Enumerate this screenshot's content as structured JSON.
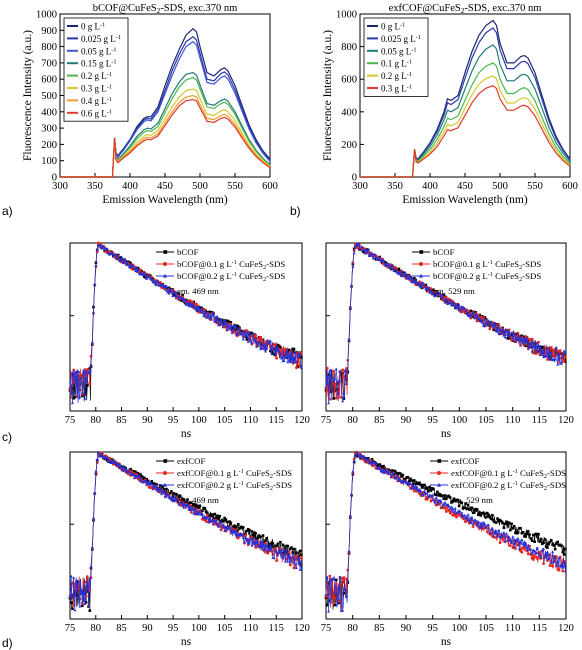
{
  "panel_letters": [
    "a)",
    "b)",
    "c)",
    "d)"
  ],
  "chart_data": [
    {
      "id": "a",
      "type": "line",
      "title": "bCOF@CuFeS₂-SDS, exc.370 nm",
      "xlabel": "Emission Wavelength (nm)",
      "ylabel": "Fluorescence Intensity (a.u.)",
      "xlim": [
        300,
        600
      ],
      "ylim": [
        0,
        1000
      ],
      "xticks": [
        300,
        350,
        400,
        450,
        500,
        550,
        600
      ],
      "yticks": [
        0,
        100,
        200,
        300,
        400,
        500,
        600,
        700,
        800,
        900,
        1000
      ],
      "legend_position": "top-left",
      "x": [
        370,
        375,
        378,
        380,
        383,
        386,
        390,
        400,
        410,
        420,
        425,
        430,
        440,
        450,
        460,
        470,
        480,
        490,
        495,
        500,
        510,
        520,
        530,
        535,
        540,
        550,
        560,
        570,
        580,
        590,
        600
      ],
      "series": [
        {
          "name": "0 g L⁻¹",
          "color": "#1c2673",
          "values": [
            0,
            0,
            240,
            150,
            130,
            150,
            170,
            230,
            310,
            360,
            370,
            370,
            430,
            560,
            680,
            780,
            870,
            910,
            890,
            800,
            640,
            620,
            660,
            670,
            650,
            560,
            440,
            320,
            230,
            160,
            110
          ]
        },
        {
          "name": "0.025 g L⁻¹",
          "color": "#2a39a8",
          "values": [
            0,
            0,
            240,
            145,
            125,
            145,
            165,
            225,
            300,
            350,
            360,
            355,
            415,
            530,
            650,
            750,
            830,
            860,
            840,
            760,
            600,
            590,
            635,
            645,
            625,
            535,
            420,
            305,
            220,
            150,
            100
          ]
        },
        {
          "name": "0.05 g L⁻¹",
          "color": "#3f55d9",
          "values": [
            0,
            0,
            240,
            140,
            120,
            140,
            160,
            220,
            290,
            340,
            350,
            345,
            400,
            510,
            620,
            720,
            800,
            830,
            810,
            730,
            580,
            570,
            610,
            620,
            600,
            515,
            405,
            295,
            210,
            145,
            95
          ]
        },
        {
          "name": "0.15 g L⁻¹",
          "color": "#1f7a78",
          "values": [
            0,
            0,
            240,
            125,
            105,
            120,
            140,
            190,
            250,
            290,
            300,
            295,
            330,
            420,
            510,
            580,
            630,
            640,
            625,
            565,
            450,
            440,
            470,
            478,
            465,
            400,
            315,
            230,
            165,
            115,
            75
          ]
        },
        {
          "name": "0.2 g L⁻¹",
          "color": "#4cb848",
          "values": [
            0,
            0,
            240,
            120,
            100,
            115,
            135,
            180,
            235,
            275,
            285,
            280,
            310,
            395,
            480,
            550,
            595,
            610,
            595,
            540,
            430,
            420,
            450,
            458,
            445,
            385,
            300,
            220,
            158,
            110,
            72
          ]
        },
        {
          "name": "0.3 g L⁻¹",
          "color": "#d7c72e",
          "values": [
            0,
            0,
            240,
            115,
            95,
            110,
            125,
            165,
            215,
            250,
            260,
            255,
            285,
            355,
            430,
            490,
            530,
            540,
            530,
            480,
            385,
            378,
            405,
            412,
            400,
            345,
            270,
            198,
            142,
            98,
            65
          ]
        },
        {
          "name": "0.4 g L⁻¹",
          "color": "#f29a2e",
          "values": [
            0,
            0,
            240,
            110,
            90,
            105,
            120,
            155,
            200,
            235,
            245,
            240,
            265,
            330,
            400,
            455,
            490,
            500,
            490,
            445,
            360,
            352,
            378,
            384,
            372,
            322,
            252,
            185,
            132,
            92,
            60
          ]
        },
        {
          "name": "0.6 g L⁻¹",
          "color": "#e0392b",
          "values": [
            0,
            0,
            240,
            105,
            88,
            100,
            115,
            148,
            190,
            222,
            232,
            228,
            252,
            315,
            380,
            435,
            468,
            475,
            466,
            424,
            342,
            335,
            360,
            366,
            355,
            307,
            240,
            176,
            126,
            88,
            57
          ]
        }
      ]
    },
    {
      "id": "b",
      "type": "line",
      "title": "exfCOF@CuFeS₂-SDS, exc.370 nm",
      "xlabel": "Emission Wavelength (nm)",
      "ylabel": "Fluorescence Intensity (a.u.)",
      "xlim": [
        300,
        600
      ],
      "ylim": [
        0,
        1000
      ],
      "xticks": [
        300,
        350,
        400,
        450,
        500,
        550,
        600
      ],
      "yticks": [
        0,
        200,
        400,
        600,
        800,
        1000
      ],
      "legend_position": "top-left",
      "x": [
        370,
        375,
        378,
        380,
        383,
        386,
        390,
        400,
        410,
        420,
        425,
        430,
        440,
        450,
        460,
        470,
        480,
        490,
        495,
        500,
        510,
        520,
        530,
        535,
        540,
        550,
        560,
        570,
        580,
        590,
        600
      ],
      "series": [
        {
          "name": "0 g L⁻¹",
          "color": "#1c2673",
          "values": [
            0,
            0,
            170,
            120,
            110,
            130,
            150,
            210,
            290,
            400,
            480,
            470,
            500,
            640,
            770,
            870,
            930,
            960,
            930,
            820,
            700,
            700,
            740,
            745,
            730,
            640,
            500,
            360,
            250,
            170,
            110
          ]
        },
        {
          "name": "0.025 g L⁻¹",
          "color": "#2a39a8",
          "values": [
            0,
            0,
            170,
            118,
            108,
            126,
            146,
            202,
            278,
            380,
            455,
            445,
            475,
            605,
            730,
            825,
            885,
            915,
            885,
            780,
            665,
            665,
            705,
            710,
            695,
            610,
            475,
            342,
            238,
            162,
            105
          ]
        },
        {
          "name": "0.05 g L⁻¹",
          "color": "#1f7a78",
          "values": [
            0,
            0,
            170,
            112,
            102,
            118,
            136,
            186,
            255,
            350,
            410,
            400,
            425,
            540,
            650,
            735,
            785,
            810,
            785,
            690,
            590,
            590,
            625,
            630,
            618,
            540,
            422,
            304,
            212,
            145,
            95
          ]
        },
        {
          "name": "0.1 g L⁻¹",
          "color": "#4cb848",
          "values": [
            0,
            0,
            170,
            106,
            96,
            110,
            126,
            168,
            228,
            310,
            360,
            352,
            375,
            470,
            565,
            640,
            680,
            700,
            680,
            600,
            512,
            512,
            542,
            548,
            536,
            468,
            365,
            264,
            184,
            126,
            82
          ]
        },
        {
          "name": "0.2 g L⁻¹",
          "color": "#d7c72e",
          "values": [
            0,
            0,
            170,
            100,
            90,
            102,
            116,
            152,
            205,
            278,
            322,
            315,
            335,
            420,
            505,
            570,
            605,
            620,
            602,
            532,
            454,
            454,
            482,
            487,
            477,
            416,
            325,
            235,
            164,
            112,
            73
          ]
        },
        {
          "name": "0.3 g L⁻¹",
          "color": "#e0392b",
          "values": [
            0,
            0,
            170,
            95,
            86,
            96,
            108,
            140,
            186,
            252,
            290,
            284,
            302,
            378,
            455,
            512,
            545,
            560,
            543,
            480,
            410,
            410,
            435,
            440,
            430,
            375,
            293,
            212,
            148,
            101,
            66
          ]
        }
      ]
    },
    {
      "id": "c-left",
      "type": "scatter",
      "xlabel": "ns",
      "xlim": [
        75,
        120
      ],
      "xticks": [
        75,
        80,
        85,
        90,
        95,
        100,
        105,
        110,
        115,
        120
      ],
      "y_scale": "log",
      "annotation": "em. 469 nm",
      "legend_position": "top-right",
      "series": [
        {
          "name": "bCOF",
          "color": "#000000",
          "marker": "square",
          "rise_time": 80.6,
          "tau": 9.0
        },
        {
          "name": "bCOF@0.1 g L⁻¹ CuFeS₂-SDS",
          "color": "#e8261e",
          "marker": "circle",
          "rise_time": 80.6,
          "tau": 8.9
        },
        {
          "name": "bCOF@0.2 g L⁻¹ CuFeS₂-SDS",
          "color": "#2233dd",
          "marker": "triangle",
          "rise_time": 80.6,
          "tau": 8.9
        }
      ]
    },
    {
      "id": "c-right",
      "type": "scatter",
      "xlabel": "ns",
      "xlim": [
        75,
        120
      ],
      "xticks": [
        75,
        80,
        85,
        90,
        95,
        100,
        105,
        110,
        115,
        120
      ],
      "y_scale": "log",
      "annotation": "em. 529 nm",
      "legend_position": "top-right",
      "series": [
        {
          "name": "bCOF",
          "color": "#000000",
          "marker": "square",
          "rise_time": 80.6,
          "tau": 9.2
        },
        {
          "name": "bCOF@0.1 g L⁻¹ CuFeS₂-SDS",
          "color": "#e8261e",
          "marker": "circle",
          "rise_time": 80.6,
          "tau": 9.1
        },
        {
          "name": "bCOF@0.2 g L⁻¹ CuFeS₂-SDS",
          "color": "#2233dd",
          "marker": "triangle",
          "rise_time": 80.6,
          "tau": 9.1
        }
      ]
    },
    {
      "id": "d-left",
      "type": "scatter",
      "xlabel": "ns",
      "xlim": [
        75,
        120
      ],
      "xticks": [
        75,
        80,
        85,
        90,
        95,
        100,
        105,
        110,
        115,
        120
      ],
      "y_scale": "log",
      "annotation": "em. 469 nm",
      "legend_position": "top-right",
      "series": [
        {
          "name": "exfCOF",
          "color": "#000000",
          "marker": "square",
          "rise_time": 80.6,
          "tau": 10.5
        },
        {
          "name": "exfCOF@0.1 g L⁻¹ CuFeS₂-SDS",
          "color": "#e8261e",
          "marker": "circle",
          "rise_time": 80.6,
          "tau": 9.5
        },
        {
          "name": "exfCOF@0.2 g L⁻¹ CuFeS₂-SDS",
          "color": "#2233dd",
          "marker": "triangle",
          "rise_time": 80.6,
          "tau": 9.6
        }
      ]
    },
    {
      "id": "d-right",
      "type": "scatter",
      "xlabel": "ns",
      "xlim": [
        75,
        120
      ],
      "xticks": [
        75,
        80,
        85,
        90,
        95,
        100,
        105,
        110,
        115,
        120
      ],
      "y_scale": "log",
      "annotation": "em. 529 nm",
      "legend_position": "top-left",
      "series": [
        {
          "name": "exfCOF",
          "color": "#000000",
          "marker": "square",
          "rise_time": 80.6,
          "tau": 11.5
        },
        {
          "name": "exfCOF@0.1 g L⁻¹ CuFeS₂-SDS",
          "color": "#e8261e",
          "marker": "circle",
          "rise_time": 80.6,
          "tau": 9.2
        },
        {
          "name": "exfCOF@0.2 g L⁻¹ CuFeS₂-SDS",
          "color": "#2233dd",
          "marker": "triangle",
          "rise_time": 80.6,
          "tau": 9.6
        }
      ]
    }
  ]
}
